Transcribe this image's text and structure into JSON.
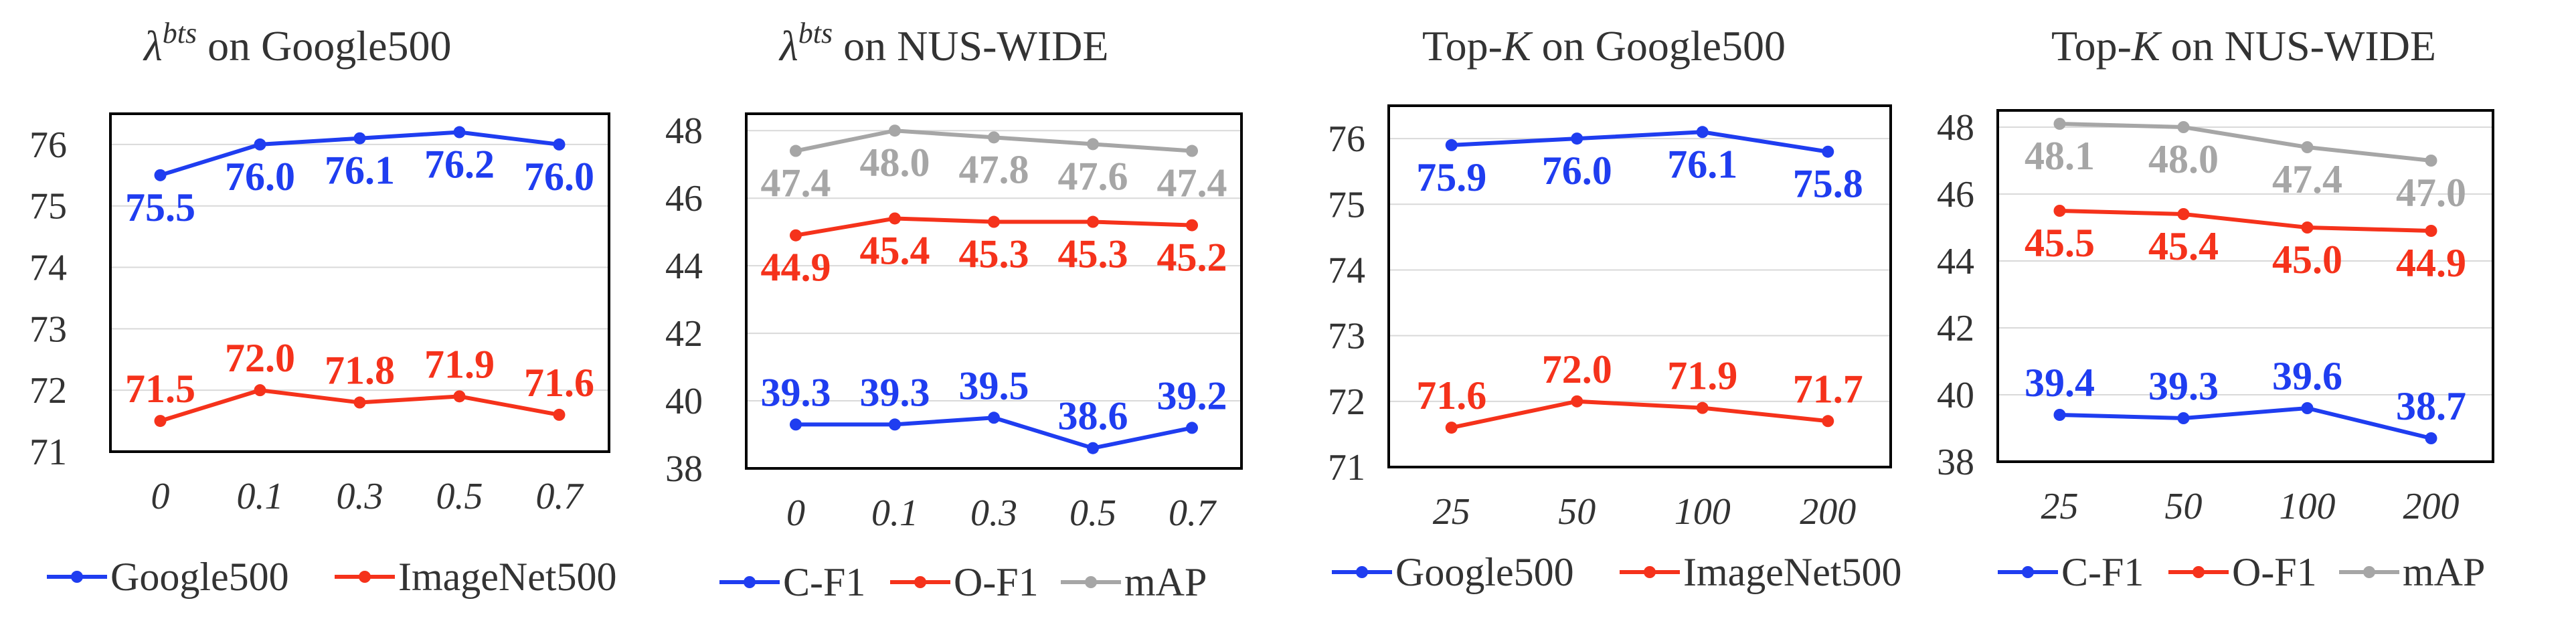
{
  "colors": {
    "blue": "#1f3df0",
    "red": "#f5321b",
    "gray": "#a6a6a6"
  },
  "chart_data": [
    {
      "type": "line",
      "title": "λbts on Google500",
      "title_parts": [
        "λ",
        "bts",
        " on Google500"
      ],
      "categories": [
        "0",
        "0.1",
        "0.3",
        "0.5",
        "0.7"
      ],
      "x_italic": true,
      "ylim": [
        71,
        76.5
      ],
      "yticks": [
        71,
        72,
        73,
        74,
        75,
        76
      ],
      "y_axis_side": "left",
      "grid": true,
      "legend_position": "bottom",
      "series": [
        {
          "name": "Google500",
          "color": "#1f3df0",
          "values": [
            75.5,
            76.0,
            76.1,
            76.2,
            76.0
          ],
          "labels": [
            "75.5",
            "76.0",
            "76.1",
            "76.2",
            "76.0"
          ],
          "label_pos": "below"
        },
        {
          "name": "ImageNet500",
          "color": "#f5321b",
          "values": [
            71.5,
            72.0,
            71.8,
            71.9,
            71.6
          ],
          "labels": [
            "71.5",
            "72.0",
            "71.8",
            "71.9",
            "71.6"
          ],
          "label_pos": "above"
        }
      ]
    },
    {
      "type": "line",
      "title": "λbts on NUS-WIDE",
      "title_parts": [
        "λ",
        "bts",
        " on NUS-WIDE"
      ],
      "categories": [
        "0",
        "0.1",
        "0.3",
        "0.5",
        "0.7"
      ],
      "x_italic": true,
      "ylim": [
        38,
        48.5
      ],
      "yticks": [
        38,
        40,
        42,
        44,
        46,
        48
      ],
      "y_axis_side": "left",
      "grid": true,
      "legend_position": "bottom",
      "series": [
        {
          "name": "C-F1",
          "color": "#1f3df0",
          "values": [
            39.3,
            39.3,
            39.5,
            38.6,
            39.2
          ],
          "labels": [
            "39.3",
            "39.3",
            "39.5",
            "38.6",
            "39.2"
          ],
          "label_pos": "above"
        },
        {
          "name": "O-F1",
          "color": "#f5321b",
          "values": [
            44.9,
            45.4,
            45.3,
            45.3,
            45.2
          ],
          "labels": [
            "44.9",
            "45.4",
            "45.3",
            "45.3",
            "45.2"
          ],
          "label_pos": "below"
        },
        {
          "name": "mAP",
          "color": "#a6a6a6",
          "values": [
            47.4,
            48.0,
            47.8,
            47.6,
            47.4
          ],
          "labels": [
            "47.4",
            "48.0",
            "47.8",
            "47.6",
            "47.4"
          ],
          "label_pos": "below"
        }
      ]
    },
    {
      "type": "line",
      "title": "Top-K on Google500",
      "title_parts": [
        "Top-",
        "K",
        " on Google500"
      ],
      "categories": [
        "25",
        "50",
        "100",
        "200"
      ],
      "x_italic": true,
      "ylim": [
        71,
        76.5
      ],
      "yticks": [
        71,
        72,
        73,
        74,
        75,
        76
      ],
      "y_axis_side": "left",
      "grid": true,
      "legend_position": "bottom",
      "series": [
        {
          "name": "Google500",
          "color": "#1f3df0",
          "values": [
            75.9,
            76.0,
            76.1,
            75.8
          ],
          "labels": [
            "75.9",
            "76.0",
            "76.1",
            "75.8"
          ],
          "label_pos": "below"
        },
        {
          "name": "ImageNet500",
          "color": "#f5321b",
          "values": [
            71.6,
            72.0,
            71.9,
            71.7
          ],
          "labels": [
            "71.6",
            "72.0",
            "71.9",
            "71.7"
          ],
          "label_pos": "above"
        }
      ]
    },
    {
      "type": "line",
      "title": "Top-K on NUS-WIDE",
      "title_parts": [
        "Top-",
        "K",
        " on NUS-WIDE"
      ],
      "categories": [
        "25",
        "50",
        "100",
        "200"
      ],
      "x_italic": true,
      "ylim": [
        38,
        48.5
      ],
      "yticks": [
        38,
        40,
        42,
        44,
        46,
        48
      ],
      "y_axis_side": "left",
      "grid": true,
      "legend_position": "bottom",
      "series": [
        {
          "name": "C-F1",
          "color": "#1f3df0",
          "values": [
            39.4,
            39.3,
            39.6,
            38.7
          ],
          "labels": [
            "39.4",
            "39.3",
            "39.6",
            "38.7"
          ],
          "label_pos": "above"
        },
        {
          "name": "O-F1",
          "color": "#f5321b",
          "values": [
            45.5,
            45.4,
            45.0,
            44.9
          ],
          "labels": [
            "45.5",
            "45.4",
            "45.0",
            "44.9"
          ],
          "label_pos": "below"
        },
        {
          "name": "mAP",
          "color": "#a6a6a6",
          "values": [
            48.1,
            48.0,
            47.4,
            47.0
          ],
          "labels": [
            "48.1",
            "48.0",
            "47.4",
            "47.0"
          ],
          "label_pos": "below"
        }
      ]
    }
  ]
}
